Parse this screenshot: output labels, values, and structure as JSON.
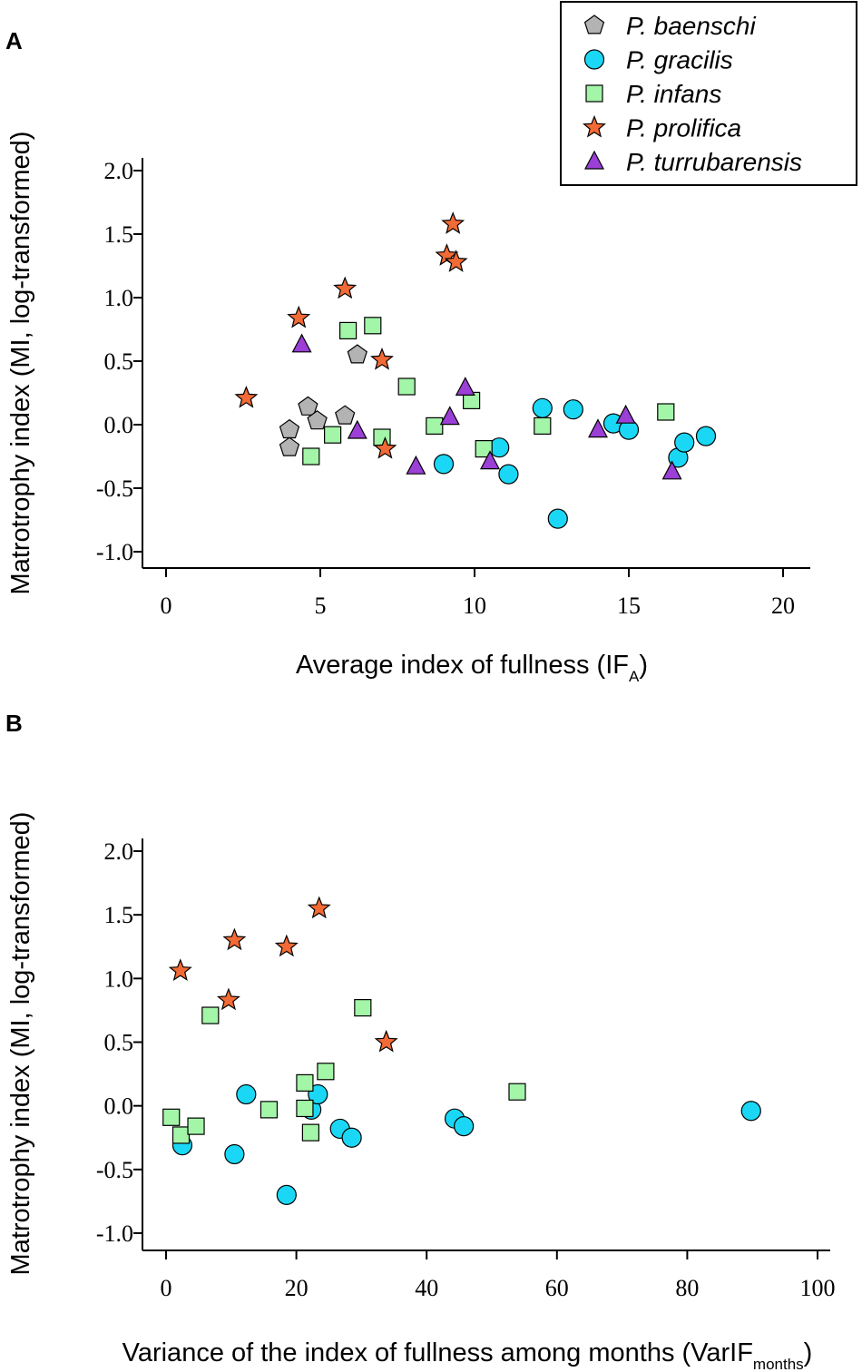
{
  "colors": {
    "P. baenschi": "#b3b3b3",
    "P. gracilis": "#1ad8f5",
    "P. infans": "#a3f5a8",
    "P. prolifica": "#f26a35",
    "P. turrubarensis": "#9b3fd6"
  },
  "legend": {
    "items": [
      {
        "species": "P. baenschi",
        "shape": "pentagon",
        "label": "P. baenschi"
      },
      {
        "species": "P. gracilis",
        "shape": "circle",
        "label": "P. gracilis"
      },
      {
        "species": "P. infans",
        "shape": "square",
        "label": "P. infans"
      },
      {
        "species": "P. prolifica",
        "shape": "star",
        "label": "P. prolifica"
      },
      {
        "species": "P. turrubarensis",
        "shape": "triangle",
        "label": "P. turrubarensis"
      }
    ]
  },
  "chart_data": [
    {
      "panel": "A",
      "type": "scatter",
      "ylabel": "Matrotrophy index (MI, log-transformed)",
      "xlabel_main": "Average index of fullness (IF",
      "xlabel_sub": "A",
      "xlabel_end": ")",
      "xlim": [
        0,
        20
      ],
      "ylim": [
        -1.0,
        2.0
      ],
      "xticks": [
        0,
        5,
        10,
        15,
        20
      ],
      "yticks": [
        -1.0,
        -0.5,
        0.0,
        0.5,
        1.0,
        1.5,
        2.0
      ],
      "xtick_labels": [
        "0",
        "5",
        "10",
        "15",
        "20"
      ],
      "ytick_labels": [
        "-1.0",
        "-0.5",
        "0.0",
        "0.5",
        "1.0",
        "1.5",
        "2.0"
      ],
      "series": [
        {
          "name": "P. baenschi",
          "shape": "pentagon",
          "points": [
            [
              4.6,
              0.14
            ],
            [
              4.9,
              0.03
            ],
            [
              4.0,
              -0.04
            ],
            [
              4.0,
              -0.18
            ],
            [
              5.8,
              0.07
            ],
            [
              6.2,
              0.55
            ]
          ]
        },
        {
          "name": "P. gracilis",
          "shape": "circle",
          "points": [
            [
              9.0,
              -0.31
            ],
            [
              10.8,
              -0.18
            ],
            [
              11.1,
              -0.39
            ],
            [
              12.2,
              0.13
            ],
            [
              13.2,
              0.12
            ],
            [
              12.7,
              -0.74
            ],
            [
              14.5,
              0.01
            ],
            [
              15.0,
              -0.04
            ],
            [
              16.6,
              -0.26
            ],
            [
              16.8,
              -0.14
            ],
            [
              17.5,
              -0.09
            ]
          ]
        },
        {
          "name": "P. infans",
          "shape": "square",
          "points": [
            [
              5.9,
              0.74
            ],
            [
              6.7,
              0.78
            ],
            [
              7.8,
              0.3
            ],
            [
              8.7,
              -0.01
            ],
            [
              9.9,
              0.19
            ],
            [
              10.3,
              -0.19
            ],
            [
              7.0,
              -0.1
            ],
            [
              5.4,
              -0.08
            ],
            [
              4.7,
              -0.25
            ],
            [
              12.2,
              -0.01
            ],
            [
              16.2,
              0.1
            ]
          ]
        },
        {
          "name": "P. prolifica",
          "shape": "star",
          "points": [
            [
              2.6,
              0.21
            ],
            [
              4.3,
              0.84
            ],
            [
              5.8,
              1.07
            ],
            [
              7.0,
              0.51
            ],
            [
              7.1,
              -0.19
            ],
            [
              9.1,
              1.33
            ],
            [
              9.3,
              1.58
            ],
            [
              9.4,
              1.28
            ]
          ]
        },
        {
          "name": "P. turrubarensis",
          "shape": "triangle",
          "points": [
            [
              4.4,
              0.63
            ],
            [
              6.2,
              -0.05
            ],
            [
              8.1,
              -0.33
            ],
            [
              9.2,
              0.06
            ],
            [
              9.7,
              0.29
            ],
            [
              10.5,
              -0.29
            ],
            [
              14.0,
              -0.04
            ],
            [
              14.9,
              0.07
            ],
            [
              16.4,
              -0.37
            ]
          ]
        }
      ]
    },
    {
      "panel": "B",
      "type": "scatter",
      "ylabel": "Matrotrophy index (MI, log-transformed)",
      "xlabel_main": "Variance of the index of fullness among months (VarIF",
      "xlabel_sub": "months",
      "xlabel_end": ")",
      "xlim": [
        0,
        100
      ],
      "ylim": [
        -1.0,
        2.0
      ],
      "xticks": [
        0,
        20,
        40,
        60,
        80,
        100
      ],
      "yticks": [
        -1.0,
        -0.5,
        0.0,
        0.5,
        1.0,
        1.5,
        2.0
      ],
      "xtick_labels": [
        "0",
        "20",
        "40",
        "60",
        "80",
        "100"
      ],
      "ytick_labels": [
        "-1.0",
        "-0.5",
        "0.0",
        "0.5",
        "1.0",
        "1.5",
        "2.0"
      ],
      "series": [
        {
          "name": "P. gracilis",
          "shape": "circle",
          "points": [
            [
              2.5,
              -0.31
            ],
            [
              10.5,
              -0.38
            ],
            [
              12.3,
              0.09
            ],
            [
              18.5,
              -0.7
            ],
            [
              22.3,
              -0.03
            ],
            [
              23.3,
              0.09
            ],
            [
              26.7,
              -0.18
            ],
            [
              28.5,
              -0.25
            ],
            [
              44.3,
              -0.1
            ],
            [
              45.7,
              -0.16
            ],
            [
              89.8,
              -0.04
            ]
          ]
        },
        {
          "name": "P. infans",
          "shape": "square",
          "points": [
            [
              0.8,
              -0.09
            ],
            [
              2.3,
              -0.23
            ],
            [
              4.6,
              -0.16
            ],
            [
              6.8,
              0.71
            ],
            [
              15.8,
              -0.03
            ],
            [
              21.3,
              -0.02
            ],
            [
              21.3,
              0.18
            ],
            [
              22.2,
              -0.21
            ],
            [
              24.5,
              0.27
            ],
            [
              30.2,
              0.77
            ],
            [
              53.9,
              0.11
            ]
          ]
        },
        {
          "name": "P. prolifica",
          "shape": "star",
          "points": [
            [
              2.2,
              1.06
            ],
            [
              9.6,
              0.83
            ],
            [
              10.5,
              1.3
            ],
            [
              18.5,
              1.25
            ],
            [
              23.5,
              1.55
            ],
            [
              33.8,
              0.5
            ]
          ]
        }
      ]
    }
  ]
}
